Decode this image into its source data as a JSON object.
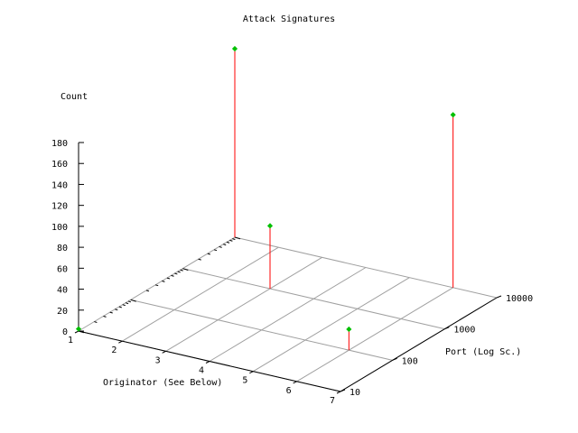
{
  "chart_data": {
    "type": "scatter",
    "title": "Attack Signatures",
    "xlabel": "Originator (See Below)",
    "ylabel": "Port (Log Sc.)",
    "zlabel": "Count",
    "x_ticks": [
      "1",
      "2",
      "3",
      "4",
      "5",
      "6",
      "7"
    ],
    "y_ticks": [
      "10",
      "100",
      "1000",
      "10000"
    ],
    "z_ticks": [
      "0",
      "20",
      "40",
      "60",
      "80",
      "100",
      "120",
      "140",
      "160",
      "180"
    ],
    "xlim": [
      1,
      7
    ],
    "ylim": [
      10,
      10000
    ],
    "zlim": [
      0,
      180
    ],
    "y_scale": "log",
    "grid": true,
    "impulse_color": "#ff0000",
    "point_color": "#00c000",
    "points": [
      {
        "x": 1,
        "y": 10,
        "z": 2
      },
      {
        "x": 1,
        "y": 10000,
        "z": 180
      },
      {
        "x": 3,
        "y": 1000,
        "z": 60
      },
      {
        "x": 6,
        "y": 100,
        "z": 20
      },
      {
        "x": 6,
        "y": 10000,
        "z": 165
      }
    ]
  }
}
